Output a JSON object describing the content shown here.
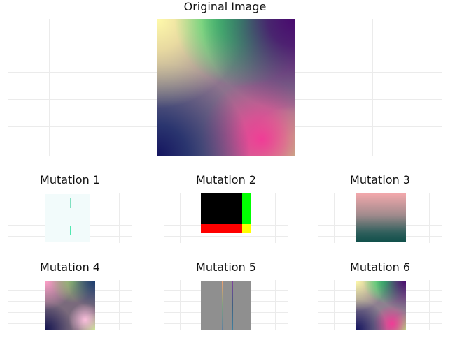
{
  "original": {
    "title": "Original Image"
  },
  "mutations": [
    {
      "title": "Mutation 1"
    },
    {
      "title": "Mutation 2"
    },
    {
      "title": "Mutation 3"
    },
    {
      "title": "Mutation 4"
    },
    {
      "title": "Mutation 5"
    },
    {
      "title": "Mutation 6"
    }
  ],
  "colors": {
    "grid": "#ebebeb",
    "mutation2_green": "#00ff00",
    "mutation2_red": "#ff0000",
    "mutation2_yellow": "#ffff00",
    "mutation5_gray": "#8f8f8f"
  }
}
